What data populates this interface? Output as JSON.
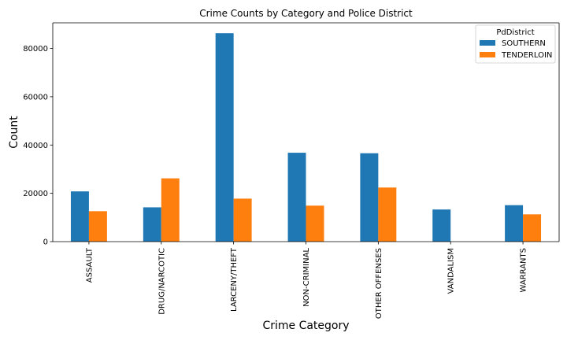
{
  "chart_data": {
    "type": "bar",
    "title": "Crime Counts by Category and Police District",
    "xlabel": "Crime Category",
    "ylabel": "Count",
    "categories": [
      "ASSAULT",
      "DRUG/NARCOTIC",
      "LARCENY/THEFT",
      "NON-CRIMINAL",
      "OTHER OFFENSES",
      "VANDALISM",
      "WARRANTS"
    ],
    "series": [
      {
        "name": "SOUTHERN",
        "color": "#1f77b4",
        "values": [
          20800,
          14200,
          86300,
          36800,
          36600,
          13300,
          15100
        ]
      },
      {
        "name": "TENDERLOIN",
        "color": "#ff7f0e",
        "values": [
          12600,
          26200,
          17800,
          14900,
          22400,
          0,
          11300
        ]
      }
    ],
    "ylim": [
      0,
      90600
    ],
    "yticks": [
      0,
      20000,
      40000,
      60000,
      80000
    ],
    "legend": {
      "title": "PdDistrict",
      "position": "top-right"
    },
    "grid": false
  }
}
